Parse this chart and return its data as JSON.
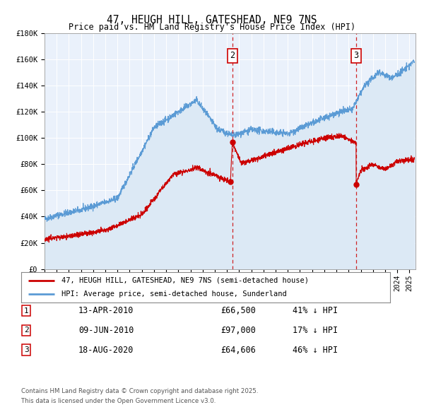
{
  "title": "47, HEUGH HILL, GATESHEAD, NE9 7NS",
  "subtitle": "Price paid vs. HM Land Registry's House Price Index (HPI)",
  "red_label": "47, HEUGH HILL, GATESHEAD, NE9 7NS (semi-detached house)",
  "blue_label": "HPI: Average price, semi-detached house, Sunderland",
  "red_color": "#cc0000",
  "blue_color": "#5b9bd5",
  "blue_fill": "#dce9f5",
  "bg_color": "#eaf1fb",
  "ylim": [
    0,
    180000
  ],
  "yticks": [
    0,
    20000,
    40000,
    60000,
    80000,
    100000,
    120000,
    140000,
    160000,
    180000
  ],
  "ytick_labels": [
    "£0",
    "£20K",
    "£40K",
    "£60K",
    "£80K",
    "£100K",
    "£120K",
    "£140K",
    "£160K",
    "£180K"
  ],
  "xmin": 1995.0,
  "xmax": 2025.5,
  "vline_x2": 2010.44,
  "vline_x3": 2020.62,
  "marker1_x": 2010.28,
  "marker1_y": 66500,
  "marker2_x": 2010.44,
  "marker2_y": 97000,
  "marker3_x": 2020.62,
  "marker3_y": 64606,
  "table_entries": [
    {
      "num": "1",
      "date": "13-APR-2010",
      "price": "£66,500",
      "pct": "41% ↓ HPI"
    },
    {
      "num": "2",
      "date": "09-JUN-2010",
      "price": "£97,000",
      "pct": "17% ↓ HPI"
    },
    {
      "num": "3",
      "date": "18-AUG-2020",
      "price": "£64,606",
      "pct": "46% ↓ HPI"
    }
  ],
  "footnote1": "Contains HM Land Registry data © Crown copyright and database right 2025.",
  "footnote2": "This data is licensed under the Open Government Licence v3.0."
}
